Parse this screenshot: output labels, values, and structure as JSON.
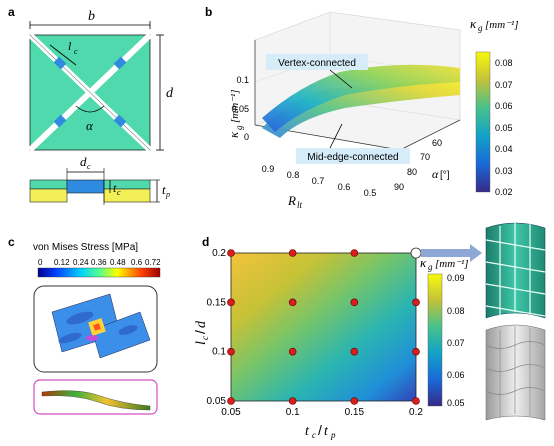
{
  "panels": {
    "a": "a",
    "b": "b",
    "c": "c",
    "d": "d"
  },
  "panel_a": {
    "dim_b": "b",
    "dim_d": "d",
    "dim_lc": "l",
    "dim_lc_sub": "c",
    "angle": "α",
    "dim_dc": "d",
    "dim_dc_sub": "c",
    "dim_tc": "t",
    "dim_tc_sub": "c",
    "dim_tp": "t",
    "dim_tp_sub": "p",
    "colors": {
      "tile": "#4fd9ad",
      "hinge": "#2f8be0",
      "bottom": "#f2ef57"
    }
  },
  "panel_b": {
    "annotation_vertex": "Vertex-connected",
    "annotation_mid": "Mid-edge-connected",
    "xlabel_main": "R",
    "xlabel_sub": "lt",
    "ylabel_main": "κ",
    "ylabel_sub": "g",
    "ylabel_unit": "[mm⁻¹]",
    "zlabel_main": "α",
    "zlabel_unit": "[°]",
    "x_ticks": [
      "0.9",
      "0.8",
      "0.7",
      "0.6",
      "0.5"
    ],
    "y_ticks": [
      "0.1",
      "0.05",
      "0"
    ],
    "z_ticks": [
      "60",
      "70",
      "80",
      "90"
    ],
    "colorbar": {
      "title_main": "κ",
      "title_sub": "g",
      "title_unit": "[mm⁻¹]",
      "ticks": [
        "0.08",
        "0.07",
        "0.06",
        "0.05",
        "0.04",
        "0.03",
        "0.02"
      ]
    }
  },
  "panel_c": {
    "title": "von Mises Stress [MPa]",
    "ticks": [
      "0",
      "0.12",
      "0.24",
      "0.36",
      "0.48",
      "0.6",
      "0.72"
    ]
  },
  "chart_data": {
    "type": "heatmap",
    "xlabel_main": "t",
    "xlabel_sub": "c",
    "xlabel_den": "t",
    "xlabel_den_sub": "p",
    "ylabel_main": "l",
    "ylabel_sub": "c",
    "ylabel_den": "d",
    "x_ticks": [
      "0.05",
      "0.1",
      "0.15",
      "0.2"
    ],
    "y_ticks": [
      "0.2",
      "0.15",
      "0.1",
      "0.05"
    ],
    "xlim": [
      0.05,
      0.2
    ],
    "ylim": [
      0.05,
      0.2
    ],
    "sample_points": [
      {
        "x": 0.05,
        "y": 0.05
      },
      {
        "x": 0.05,
        "y": 0.1
      },
      {
        "x": 0.05,
        "y": 0.15
      },
      {
        "x": 0.05,
        "y": 0.2
      },
      {
        "x": 0.1,
        "y": 0.05
      },
      {
        "x": 0.1,
        "y": 0.1
      },
      {
        "x": 0.1,
        "y": 0.15
      },
      {
        "x": 0.1,
        "y": 0.2
      },
      {
        "x": 0.15,
        "y": 0.05
      },
      {
        "x": 0.15,
        "y": 0.1
      },
      {
        "x": 0.15,
        "y": 0.15
      },
      {
        "x": 0.15,
        "y": 0.2
      },
      {
        "x": 0.2,
        "y": 0.05
      },
      {
        "x": 0.2,
        "y": 0.1
      },
      {
        "x": 0.2,
        "y": 0.15
      },
      {
        "x": 0.2,
        "y": 0.2
      }
    ],
    "colorbar": {
      "title_main": "κ",
      "title_sub": "g",
      "title_unit": "[mm⁻¹]",
      "ticks": [
        "0.09",
        "0.08",
        "0.07",
        "0.06",
        "0.05"
      ],
      "range": [
        0.05,
        0.09
      ]
    }
  }
}
